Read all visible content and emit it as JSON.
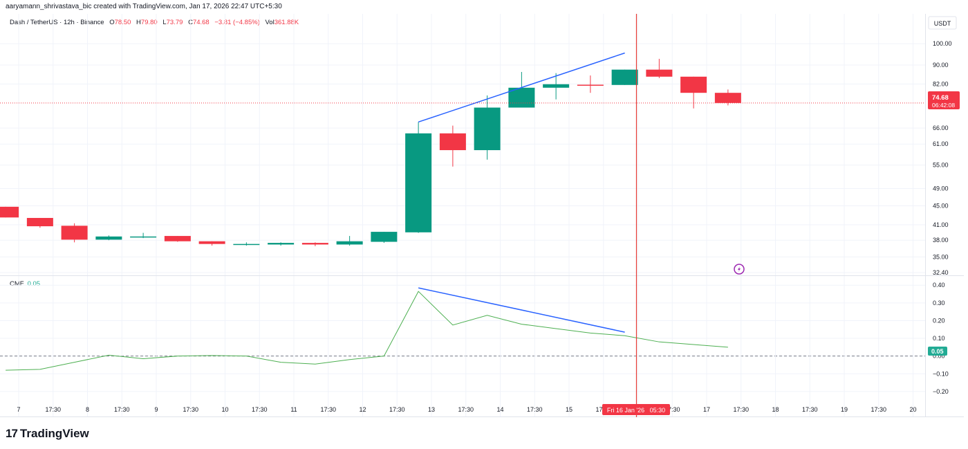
{
  "header": {
    "attribution": "aaryamann_shrivastava_bic created with TradingView.com, Jan 17, 2026 22:47 UTC+5:30"
  },
  "symbol": {
    "name": "Dash / TetherUS · 12h · Binance",
    "o_label": "O",
    "o_value": "78.50",
    "h_label": "H",
    "h_value": "79.80",
    "l_label": "L",
    "l_value": "73.79",
    "c_label": "C",
    "c_value": "74.68",
    "change": "−3.81 (−4.85%)",
    "vol_label": "Vol",
    "vol_value": "361.88K"
  },
  "indicator": {
    "name": "CMF",
    "value": "0.05"
  },
  "price_axis": {
    "currency": "USDT",
    "last_price": "74.68",
    "countdown": "06:42:08"
  },
  "cmf_axis": {
    "current_label": "0.05"
  },
  "crosshair": {
    "label": "Fri 16 Jan '26   05:30"
  },
  "footer": {
    "brand": "TradingView",
    "logo_mark": "17"
  },
  "colors": {
    "up": "#089981",
    "down": "#f23645",
    "trendline": "#2962ff",
    "cmf": "#4caf50",
    "crosshair": "#e53935"
  },
  "chart_data": [
    {
      "type": "candlestick",
      "title": "Dash / TetherUS · 12h · Binance",
      "scale": "log",
      "ylim": [
        32.4,
        106
      ],
      "y_ticks": [
        "100.00",
        "90.00",
        "82.00",
        "66.00",
        "61.00",
        "55.00",
        "49.00",
        "45.00",
        "41.00",
        "38.00",
        "35.00",
        "32.40"
      ],
      "x_ticks": [
        "7",
        "17:30",
        "8",
        "17:30",
        "9",
        "17:30",
        "10",
        "17:30",
        "11",
        "17:30",
        "12",
        "17:30",
        "13",
        "17:30",
        "14",
        "17:30",
        "15",
        "17:30",
        "16",
        "17:30",
        "17",
        "17:30",
        "18",
        "17:30",
        "19",
        "17:30",
        "20"
      ],
      "candles": [
        {
          "o": 44.8,
          "h": 44.8,
          "l": 42.5,
          "c": 42.5
        },
        {
          "o": 42.4,
          "h": 42.4,
          "l": 40.4,
          "c": 40.7
        },
        {
          "o": 40.8,
          "h": 41.3,
          "l": 37.6,
          "c": 38.1
        },
        {
          "o": 38.1,
          "h": 38.9,
          "l": 38.0,
          "c": 38.7
        },
        {
          "o": 38.7,
          "h": 39.4,
          "l": 38.4,
          "c": 38.7
        },
        {
          "o": 38.8,
          "h": 38.8,
          "l": 37.7,
          "c": 37.8
        },
        {
          "o": 37.8,
          "h": 37.8,
          "l": 37.0,
          "c": 37.3
        },
        {
          "o": 37.3,
          "h": 37.6,
          "l": 37.0,
          "c": 37.3
        },
        {
          "o": 37.2,
          "h": 37.6,
          "l": 37.0,
          "c": 37.5
        },
        {
          "o": 37.5,
          "h": 37.6,
          "l": 36.9,
          "c": 37.2
        },
        {
          "o": 37.2,
          "h": 38.8,
          "l": 37.0,
          "c": 37.8
        },
        {
          "o": 37.7,
          "h": 39.6,
          "l": 37.5,
          "c": 39.6
        },
        {
          "o": 39.5,
          "h": 68.0,
          "l": 39.4,
          "c": 64.3
        },
        {
          "o": 64.3,
          "h": 66.8,
          "l": 54.6,
          "c": 59.2
        },
        {
          "o": 59.2,
          "h": 77.5,
          "l": 56.5,
          "c": 73.0
        },
        {
          "o": 73.0,
          "h": 87.0,
          "l": 73.0,
          "c": 80.5
        },
        {
          "o": 80.5,
          "h": 86.5,
          "l": 76.0,
          "c": 81.9
        },
        {
          "o": 81.7,
          "h": 85.5,
          "l": 78.5,
          "c": 81.3
        },
        {
          "o": 81.6,
          "h": 88.0,
          "l": 81.6,
          "c": 88.0
        },
        {
          "o": 88.0,
          "h": 92.8,
          "l": 84.4,
          "c": 85.0
        },
        {
          "o": 85.0,
          "h": 85.0,
          "l": 72.7,
          "c": 78.5
        },
        {
          "o": 78.5,
          "h": 79.8,
          "l": 73.79,
          "c": 74.68
        }
      ],
      "trendline": [
        {
          "x": "13 05:30",
          "y": 68.0
        },
        {
          "x": "16 05:30",
          "y": 95.5
        }
      ]
    },
    {
      "type": "line",
      "title": "CMF",
      "ylim": [
        -0.22,
        0.44
      ],
      "y_ticks": [
        "0.40",
        "0.30",
        "0.20",
        "0.10",
        "0.00",
        "−0.10",
        "−0.20"
      ],
      "zero_line": true,
      "values": [
        -0.08,
        -0.075,
        -0.035,
        0.005,
        -0.015,
        0.0,
        0.003,
        0.0,
        -0.035,
        -0.045,
        -0.02,
        0.0,
        0.365,
        0.175,
        0.23,
        0.18,
        0.155,
        0.13,
        0.115,
        0.08,
        0.065,
        0.05
      ],
      "trendline": [
        {
          "x": "13 05:30",
          "y": 0.385
        },
        {
          "x": "16 05:30",
          "y": 0.135
        }
      ]
    }
  ]
}
